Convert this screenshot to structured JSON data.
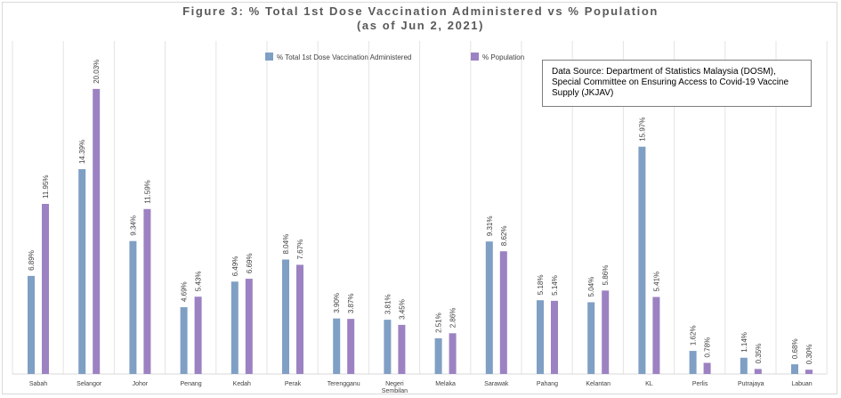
{
  "chart_data": {
    "type": "bar",
    "title_line1": "Figure 3: %  Total 1st Dose Vaccination Administered vs %  Population",
    "title_line2": "(as of Jun 2, 2021)",
    "categories": [
      "Sabah",
      "Selangor",
      "Johor",
      "Penang",
      "Kedah",
      "Perak",
      "Terengganu",
      "Negeri Sembilan",
      "Melaka",
      "Sarawak",
      "Pahang",
      "Kelantan",
      "KL",
      "Perlis",
      "Putrajaya",
      "Labuan"
    ],
    "series": [
      {
        "name": "% Total 1st Dose Vaccination Administered",
        "color": "#7f9fc4",
        "values": [
          6.89,
          14.39,
          9.34,
          4.69,
          6.49,
          8.04,
          3.9,
          3.81,
          2.51,
          9.31,
          5.18,
          5.04,
          15.97,
          1.62,
          1.14,
          0.68
        ],
        "labels": [
          "6.89%",
          "14.39%",
          "9.34%",
          "4.69%",
          "6.49%",
          "8.04%",
          "3.90%",
          "3.81%",
          "2.51%",
          "9.31%",
          "5.18%",
          "5.04%",
          "15.97%",
          "1.62%",
          "1.14%",
          "0.68%"
        ]
      },
      {
        "name": "% Population",
        "color": "#9c82c2",
        "values": [
          11.95,
          20.03,
          11.59,
          5.43,
          6.69,
          7.67,
          3.87,
          3.45,
          2.86,
          8.62,
          5.14,
          5.86,
          5.41,
          0.78,
          0.35,
          0.3
        ],
        "labels": [
          "11.95%",
          "20.03%",
          "11.59%",
          "5.43%",
          "6.69%",
          "7.67%",
          "3.87%",
          "3.45%",
          "2.86%",
          "8.62%",
          "5.14%",
          "5.86%",
          "5.41%",
          "0.78%",
          "0.35%",
          "0.30%"
        ]
      }
    ],
    "ylim": [
      0,
      23.4
    ],
    "grid": "vertical",
    "legend": "top-center",
    "source_note": "Data Source: Department of Statistics Malaysia (DOSM), Special Committee on Ensuring Access to Covid-19 Vaccine Supply (JKJAV)"
  }
}
